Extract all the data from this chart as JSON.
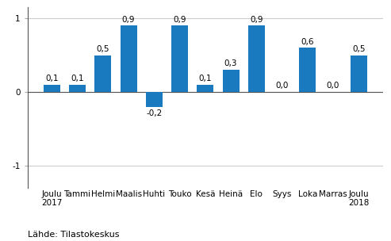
{
  "categories": [
    "Joulu\n2017",
    "Tammi",
    "Helmi",
    "Maalis",
    "Huhti",
    "Touko",
    "Kesä",
    "Heinä",
    "Elo",
    "Syys",
    "Loka",
    "Marras",
    "Joulu\n2018"
  ],
  "values": [
    0.1,
    0.1,
    0.5,
    0.9,
    -0.2,
    0.9,
    0.1,
    0.3,
    0.9,
    0.0,
    0.6,
    0.0,
    0.5
  ],
  "bar_color": "#1a7abf",
  "ylim": [
    -1.3,
    1.15
  ],
  "yticks": [
    -1,
    0,
    1
  ],
  "source_text": "Lähde: Tilastokeskus",
  "background_color": "#ffffff",
  "label_fontsize": 7.5,
  "tick_fontsize": 7.5,
  "source_fontsize": 8,
  "bar_width": 0.65
}
